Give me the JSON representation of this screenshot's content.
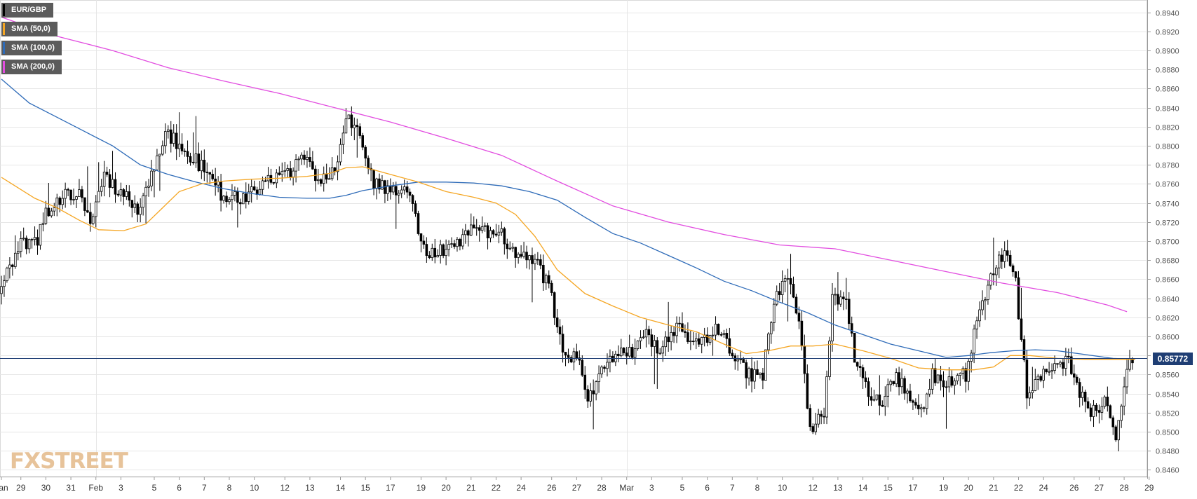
{
  "chart_data": {
    "type": "candlestick",
    "instrument": "EUR/GBP",
    "legend": [
      {
        "label": "EUR/GBP",
        "color": "#000000"
      },
      {
        "label": "SMA (50,0)",
        "color": "#f5a623"
      },
      {
        "label": "SMA (100,0)",
        "color": "#2e6bb8"
      },
      {
        "label": "SMA (200,0)",
        "color": "#e24de0"
      }
    ],
    "y_ticks": [
      "0.8460",
      "0.8480",
      "0.8500",
      "0.8520",
      "0.8540",
      "0.8560",
      "0.8580",
      "0.8600",
      "0.8620",
      "0.8640",
      "0.8660",
      "0.8680",
      "0.8700",
      "0.8720",
      "0.8740",
      "0.8760",
      "0.8780",
      "0.8800",
      "0.8820",
      "0.8840",
      "0.8860",
      "0.8880",
      "0.8900",
      "0.8920",
      "0.8940"
    ],
    "y_tick_values": [
      0.846,
      0.848,
      0.85,
      0.852,
      0.854,
      0.856,
      0.858,
      0.86,
      0.862,
      0.864,
      0.866,
      0.868,
      0.87,
      0.872,
      0.874,
      0.876,
      0.878,
      0.88,
      0.882,
      0.884,
      0.886,
      0.888,
      0.89,
      0.892,
      0.894
    ],
    "ylim": [
      0.8453,
      0.8953
    ],
    "x_ticks": [
      {
        "label": "Jan",
        "i": 0
      },
      {
        "label": "29",
        "i": 7
      },
      {
        "label": "30",
        "i": 16
      },
      {
        "label": "31",
        "i": 25
      },
      {
        "label": "Feb",
        "i": 34
      },
      {
        "label": "3",
        "i": 43
      },
      {
        "label": "5",
        "i": 55
      },
      {
        "label": "6",
        "i": 64
      },
      {
        "label": "7",
        "i": 73
      },
      {
        "label": "8",
        "i": 82
      },
      {
        "label": "10",
        "i": 91
      },
      {
        "label": "12",
        "i": 102
      },
      {
        "label": "13",
        "i": 111
      },
      {
        "label": "14",
        "i": 122
      },
      {
        "label": "15",
        "i": 131
      },
      {
        "label": "17",
        "i": 140
      },
      {
        "label": "19",
        "i": 151
      },
      {
        "label": "20",
        "i": 160
      },
      {
        "label": "21",
        "i": 169
      },
      {
        "label": "22",
        "i": 178
      },
      {
        "label": "24",
        "i": 187
      },
      {
        "label": "26",
        "i": 198
      },
      {
        "label": "27",
        "i": 207
      },
      {
        "label": "28",
        "i": 216
      },
      {
        "label": "Mar",
        "i": 225
      },
      {
        "label": "3",
        "i": 234
      },
      {
        "label": "5",
        "i": 245
      },
      {
        "label": "6",
        "i": 254
      },
      {
        "label": "7",
        "i": 263
      },
      {
        "label": "8",
        "i": 272
      },
      {
        "label": "10",
        "i": 281
      },
      {
        "label": "12",
        "i": 292
      },
      {
        "label": "13",
        "i": 301
      },
      {
        "label": "14",
        "i": 310
      },
      {
        "label": "15",
        "i": 319
      },
      {
        "label": "17",
        "i": 328
      },
      {
        "label": "19",
        "i": 339
      },
      {
        "label": "20",
        "i": 348
      },
      {
        "label": "21",
        "i": 357
      },
      {
        "label": "22",
        "i": 366
      },
      {
        "label": "24",
        "i": 375
      },
      {
        "label": "26",
        "i": 386
      },
      {
        "label": "27",
        "i": 395
      },
      {
        "label": "28",
        "i": 404
      },
      {
        "label": "29",
        "i": 413
      }
    ],
    "vlines_i": [
      34,
      225
    ],
    "candle_count": 408,
    "anchors": [
      [
        0,
        0.8645
      ],
      [
        8,
        0.8695
      ],
      [
        14,
        0.87
      ],
      [
        17,
        0.873
      ],
      [
        21,
        0.8742
      ],
      [
        29,
        0.8755
      ],
      [
        33,
        0.8722
      ],
      [
        38,
        0.877
      ],
      [
        44,
        0.875
      ],
      [
        50,
        0.8735
      ],
      [
        56,
        0.878
      ],
      [
        60,
        0.8815
      ],
      [
        68,
        0.879
      ],
      [
        75,
        0.8775
      ],
      [
        80,
        0.875
      ],
      [
        87,
        0.8745
      ],
      [
        95,
        0.876
      ],
      [
        105,
        0.877
      ],
      [
        110,
        0.879
      ],
      [
        115,
        0.876
      ],
      [
        122,
        0.878
      ],
      [
        125,
        0.883
      ],
      [
        130,
        0.8815
      ],
      [
        135,
        0.876
      ],
      [
        140,
        0.8755
      ],
      [
        148,
        0.875
      ],
      [
        153,
        0.869
      ],
      [
        159,
        0.869
      ],
      [
        170,
        0.871
      ],
      [
        180,
        0.871
      ],
      [
        186,
        0.869
      ],
      [
        194,
        0.868
      ],
      [
        199,
        0.864
      ],
      [
        203,
        0.858
      ],
      [
        208,
        0.858
      ],
      [
        212,
        0.854
      ],
      [
        215,
        0.855
      ],
      [
        220,
        0.858
      ],
      [
        228,
        0.8585
      ],
      [
        232,
        0.8605
      ],
      [
        238,
        0.8585
      ],
      [
        245,
        0.861
      ],
      [
        252,
        0.859
      ],
      [
        258,
        0.861
      ],
      [
        265,
        0.858
      ],
      [
        270,
        0.856
      ],
      [
        275,
        0.856
      ],
      [
        279,
        0.864
      ],
      [
        284,
        0.866
      ],
      [
        288,
        0.862
      ],
      [
        292,
        0.85
      ],
      [
        297,
        0.852
      ],
      [
        300,
        0.864
      ],
      [
        305,
        0.864
      ],
      [
        308,
        0.858
      ],
      [
        312,
        0.8545
      ],
      [
        318,
        0.853
      ],
      [
        323,
        0.856
      ],
      [
        328,
        0.853
      ],
      [
        332,
        0.852
      ],
      [
        336,
        0.856
      ],
      [
        342,
        0.855
      ],
      [
        348,
        0.856
      ],
      [
        352,
        0.862
      ],
      [
        357,
        0.866
      ],
      [
        362,
        0.869
      ],
      [
        366,
        0.8655
      ],
      [
        370,
        0.854
      ],
      [
        378,
        0.8565
      ],
      [
        385,
        0.8575
      ],
      [
        392,
        0.852
      ],
      [
        398,
        0.853
      ],
      [
        402,
        0.8495
      ],
      [
        405,
        0.8555
      ],
      [
        408,
        0.8577
      ]
    ],
    "sma_50": [
      [
        0,
        0.8767
      ],
      [
        12,
        0.8745
      ],
      [
        20,
        0.8735
      ],
      [
        28,
        0.8722
      ],
      [
        35,
        0.8712
      ],
      [
        44,
        0.8711
      ],
      [
        52,
        0.8718
      ],
      [
        58,
        0.8735
      ],
      [
        64,
        0.8752
      ],
      [
        72,
        0.876
      ],
      [
        80,
        0.8763
      ],
      [
        90,
        0.8765
      ],
      [
        100,
        0.8766
      ],
      [
        110,
        0.8768
      ],
      [
        118,
        0.8771
      ],
      [
        124,
        0.8777
      ],
      [
        130,
        0.8778
      ],
      [
        140,
        0.877
      ],
      [
        150,
        0.8762
      ],
      [
        160,
        0.8752
      ],
      [
        170,
        0.8746
      ],
      [
        178,
        0.874
      ],
      [
        185,
        0.8728
      ],
      [
        192,
        0.8705
      ],
      [
        200,
        0.867
      ],
      [
        210,
        0.8645
      ],
      [
        220,
        0.8632
      ],
      [
        230,
        0.862
      ],
      [
        240,
        0.8612
      ],
      [
        250,
        0.8605
      ],
      [
        260,
        0.8592
      ],
      [
        268,
        0.8582
      ],
      [
        276,
        0.8585
      ],
      [
        284,
        0.859
      ],
      [
        292,
        0.859
      ],
      [
        300,
        0.8592
      ],
      [
        310,
        0.8585
      ],
      [
        320,
        0.8577
      ],
      [
        330,
        0.8567
      ],
      [
        340,
        0.8565
      ],
      [
        350,
        0.8565
      ],
      [
        357,
        0.8568
      ],
      [
        363,
        0.858
      ],
      [
        370,
        0.858
      ],
      [
        380,
        0.8577
      ],
      [
        390,
        0.8576
      ],
      [
        408,
        0.8576
      ]
    ],
    "sma_100": [
      [
        0,
        0.887
      ],
      [
        10,
        0.8845
      ],
      [
        20,
        0.883
      ],
      [
        30,
        0.8815
      ],
      [
        40,
        0.88
      ],
      [
        50,
        0.878
      ],
      [
        60,
        0.877
      ],
      [
        70,
        0.8762
      ],
      [
        80,
        0.8755
      ],
      [
        90,
        0.875
      ],
      [
        100,
        0.8746
      ],
      [
        110,
        0.8745
      ],
      [
        118,
        0.8745
      ],
      [
        124,
        0.8748
      ],
      [
        130,
        0.8753
      ],
      [
        140,
        0.8758
      ],
      [
        150,
        0.8762
      ],
      [
        160,
        0.8762
      ],
      [
        170,
        0.8761
      ],
      [
        180,
        0.8758
      ],
      [
        190,
        0.8752
      ],
      [
        200,
        0.8743
      ],
      [
        210,
        0.8725
      ],
      [
        220,
        0.8708
      ],
      [
        230,
        0.8698
      ],
      [
        240,
        0.8685
      ],
      [
        250,
        0.8672
      ],
      [
        260,
        0.8658
      ],
      [
        270,
        0.8648
      ],
      [
        280,
        0.8636
      ],
      [
        290,
        0.8625
      ],
      [
        300,
        0.8612
      ],
      [
        310,
        0.8602
      ],
      [
        320,
        0.8592
      ],
      [
        330,
        0.8585
      ],
      [
        340,
        0.8578
      ],
      [
        348,
        0.858
      ],
      [
        356,
        0.8583
      ],
      [
        364,
        0.8585
      ],
      [
        372,
        0.8586
      ],
      [
        380,
        0.8585
      ],
      [
        390,
        0.8581
      ],
      [
        400,
        0.8577
      ],
      [
        408,
        0.8576
      ]
    ],
    "sma_200": [
      [
        0,
        0.8935
      ],
      [
        20,
        0.8915
      ],
      [
        40,
        0.89
      ],
      [
        60,
        0.8882
      ],
      [
        80,
        0.8868
      ],
      [
        100,
        0.8855
      ],
      [
        120,
        0.884
      ],
      [
        140,
        0.8825
      ],
      [
        160,
        0.8808
      ],
      [
        180,
        0.879
      ],
      [
        200,
        0.8763
      ],
      [
        220,
        0.8737
      ],
      [
        240,
        0.872
      ],
      [
        260,
        0.8707
      ],
      [
        280,
        0.8696
      ],
      [
        300,
        0.8692
      ],
      [
        320,
        0.868
      ],
      [
        340,
        0.8668
      ],
      [
        360,
        0.8656
      ],
      [
        380,
        0.8646
      ],
      [
        398,
        0.8633
      ],
      [
        405,
        0.8626
      ]
    ],
    "current_price": 0.85772,
    "current_price_label": "0.85772",
    "colors": {
      "bull": "#ffffff",
      "bear": "#000000",
      "grid": "#e6e6e6",
      "price_line": "#1f3e74"
    }
  },
  "watermark": {
    "fx": "FX",
    "street": "STREET"
  }
}
